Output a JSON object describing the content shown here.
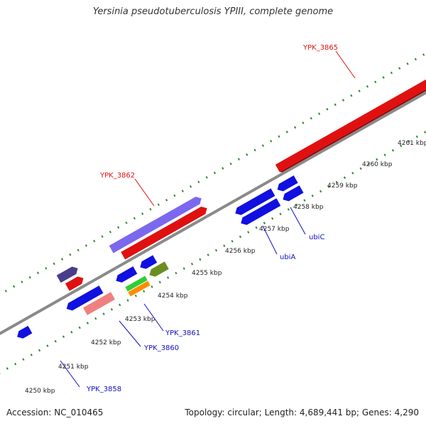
{
  "title": "Yersinia pseudotuberculosis YPIII, complete genome",
  "footer": {
    "accession": "Accession: NC_010465",
    "summary": "Topology: circular; Length: 4,689,441 bp; Genes: 4,290"
  },
  "scale": {
    "ticks": [
      "4250 kbp",
      "4251 kbp",
      "4252 kbp",
      "4253 kbp",
      "4254 kbp",
      "4255 kbp",
      "4256 kbp",
      "4257 kbp",
      "4258 kbp",
      "4259 kbp",
      "4260 kbp",
      "4261 kbp"
    ]
  },
  "gene_labels": {
    "ypk_3865": "YPK_3865",
    "ypk_3862": "YPK_3862",
    "ubiA": "ubiA",
    "ubiC": "ubiC",
    "ypk_3861": "YPK_3861",
    "ypk_3860": "YPK_3860",
    "ypk_3858": "YPK_3858"
  },
  "colors": {
    "backbone": "#8a8a8a",
    "tick_green": "#2e8b2e",
    "cds_blue": "#1010e0",
    "rna_red": "#e01010",
    "lavender": "#7b68ee",
    "dark_slate": "#483d8b",
    "olive": "#6b8e23",
    "pink": "#f08080",
    "green": "#32cd32",
    "orange": "#ff8c00",
    "label_red": "#e01010",
    "label_blue": "#1010c0"
  }
}
